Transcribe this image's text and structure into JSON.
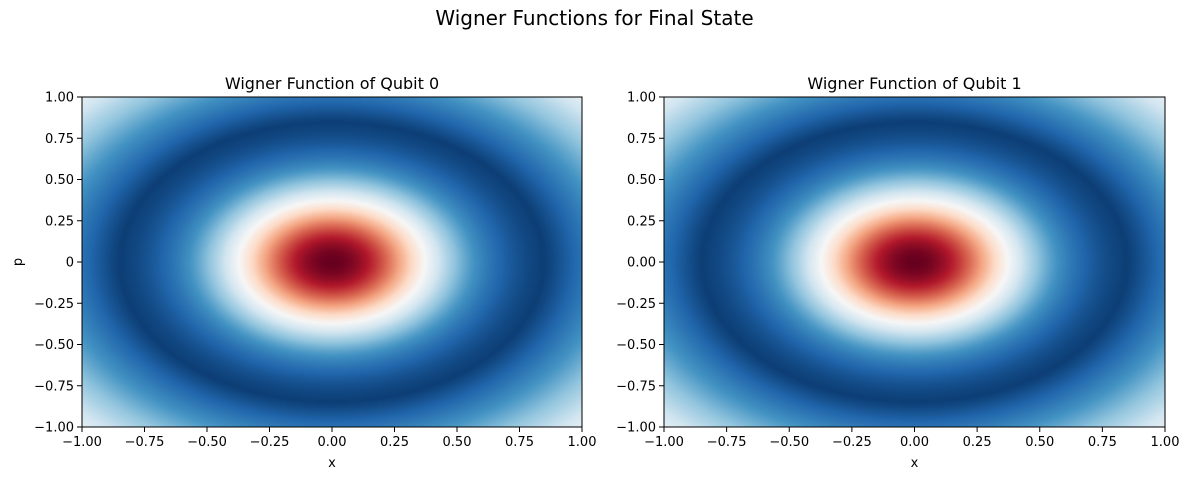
{
  "figure": {
    "suptitle": "Wigner Functions for Final State"
  },
  "chart_data": [
    {
      "type": "heatmap",
      "title": "Wigner Function of Qubit 0",
      "xlabel": "x",
      "ylabel": "p",
      "xlim": [
        -1.0,
        1.0
      ],
      "ylim": [
        -1.0,
        1.0
      ],
      "xticks": [
        "−1.00",
        "−0.75",
        "−0.50",
        "−0.25",
        "0.00",
        "0.25",
        "0.50",
        "0.75",
        "1.00"
      ],
      "yticks": [
        "−1.00",
        "−0.75",
        "−0.50",
        "−0.25",
        "0",
        "0.25",
        "0.50",
        "0.75",
        "1.00"
      ],
      "colormap": "RdBu_r",
      "peak": {
        "x": 0.0,
        "p": 0.0
      },
      "grid": false
    },
    {
      "type": "heatmap",
      "title": "Wigner Function of Qubit 1",
      "xlabel": "x",
      "ylabel": "",
      "xlim": [
        -1.0,
        1.0
      ],
      "ylim": [
        -1.0,
        1.0
      ],
      "xticks": [
        "−1.00",
        "−0.75",
        "−0.50",
        "−0.25",
        "0.00",
        "0.25",
        "0.50",
        "0.75",
        "1.00"
      ],
      "yticks": [
        "−1.00",
        "−0.75",
        "−0.50",
        "−0.25",
        "0.00",
        "0.25",
        "0.50",
        "0.75",
        "1.00"
      ],
      "colormap": "RdBu_r",
      "peak": {
        "x": 0.0,
        "p": 0.0
      },
      "grid": false
    }
  ]
}
